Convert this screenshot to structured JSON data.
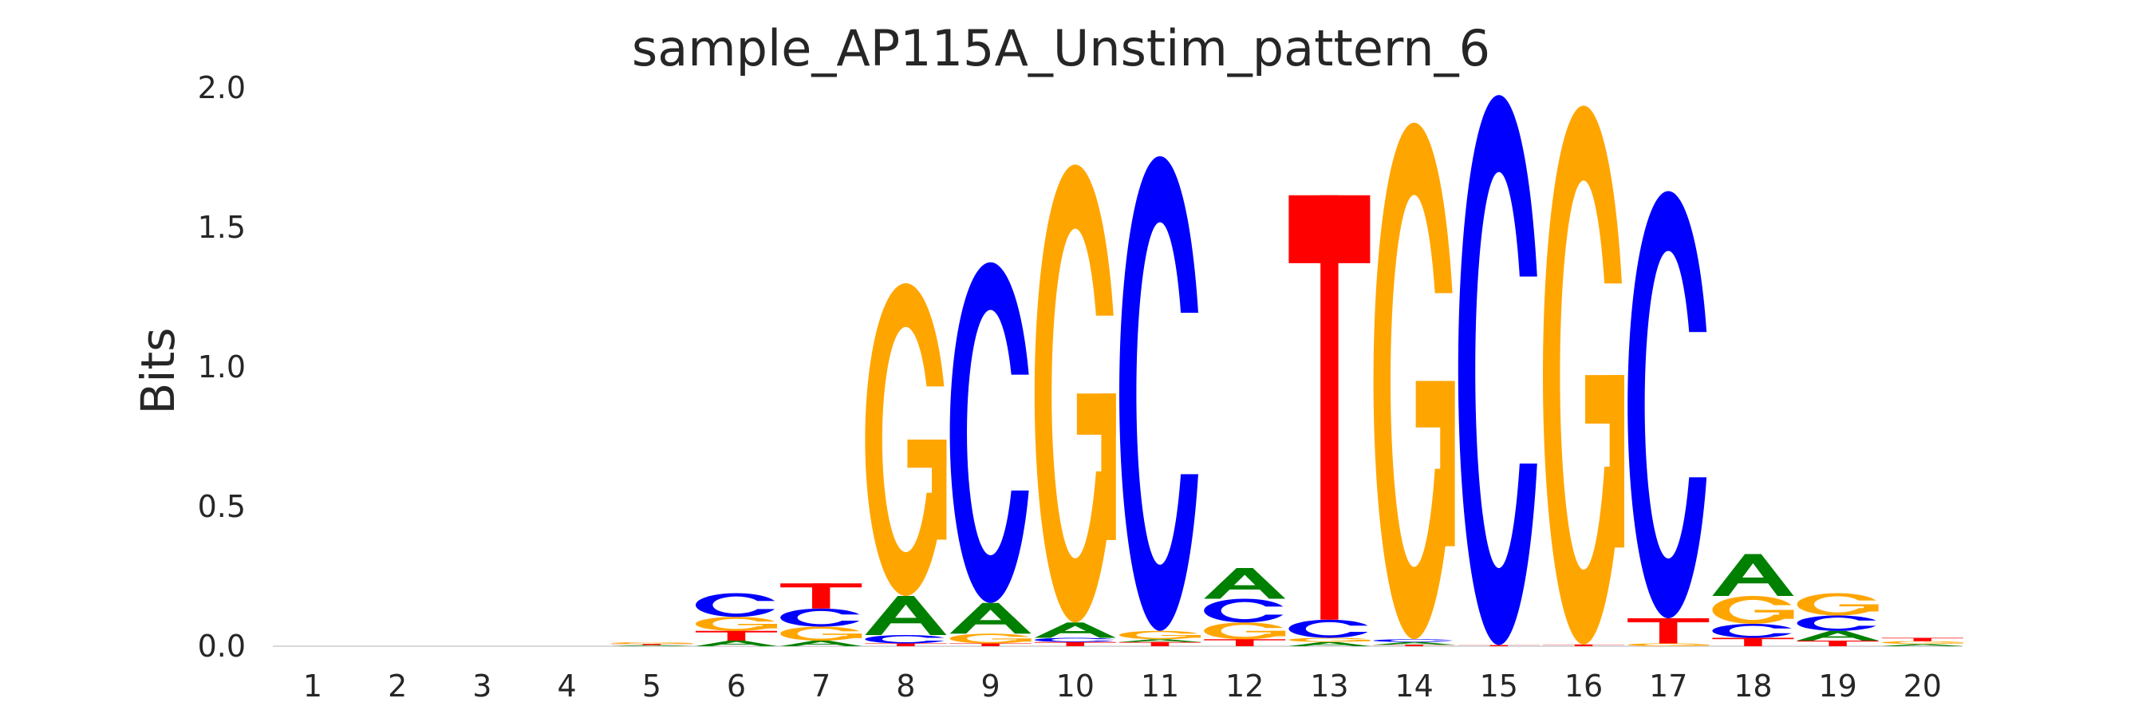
{
  "chart_data": {
    "type": "sequence-logo",
    "title": "sample_AP115A_Unstim_pattern_6",
    "ylabel": "Bits",
    "xlabel": "",
    "ylim": [
      0,
      2.0
    ],
    "yticks": [
      "0.0",
      "0.5",
      "1.0",
      "1.5",
      "2.0"
    ],
    "ytick_values": [
      0,
      0.5,
      1.0,
      1.5,
      2.0
    ],
    "positions": [
      "1",
      "2",
      "3",
      "4",
      "5",
      "6",
      "7",
      "8",
      "9",
      "10",
      "11",
      "12",
      "13",
      "14",
      "15",
      "16",
      "17",
      "18",
      "19",
      "20"
    ],
    "colors": {
      "A": "#008000",
      "C": "#0000ff",
      "G": "#ffa500",
      "T": "#ff0000"
    },
    "grid": false,
    "stacks": [
      [],
      [],
      [],
      [],
      [
        {
          "base": "A",
          "height": 0.004
        },
        {
          "base": "T",
          "height": 0.004
        },
        {
          "base": "G",
          "height": 0.006
        }
      ],
      [
        {
          "base": "A",
          "height": 0.02
        },
        {
          "base": "T",
          "height": 0.035
        },
        {
          "base": "G",
          "height": 0.05
        },
        {
          "base": "C",
          "height": 0.085
        }
      ],
      [
        {
          "base": "A",
          "height": 0.02
        },
        {
          "base": "G",
          "height": 0.05
        },
        {
          "base": "C",
          "height": 0.065
        },
        {
          "base": "T",
          "height": 0.09
        }
      ],
      [
        {
          "base": "T",
          "height": 0.01
        },
        {
          "base": "C",
          "height": 0.03
        },
        {
          "base": "A",
          "height": 0.14
        },
        {
          "base": "G",
          "height": 1.12
        }
      ],
      [
        {
          "base": "T",
          "height": 0.01
        },
        {
          "base": "G",
          "height": 0.035
        },
        {
          "base": "A",
          "height": 0.11
        },
        {
          "base": "C",
          "height": 1.22
        }
      ],
      [
        {
          "base": "T",
          "height": 0.015
        },
        {
          "base": "C",
          "height": 0.015
        },
        {
          "base": "A",
          "height": 0.055
        },
        {
          "base": "G",
          "height": 1.64
        }
      ],
      [
        {
          "base": "T",
          "height": 0.015
        },
        {
          "base": "A",
          "height": 0.01
        },
        {
          "base": "G",
          "height": 0.03
        },
        {
          "base": "C",
          "height": 1.7
        }
      ],
      [
        {
          "base": "T",
          "height": 0.025
        },
        {
          "base": "G",
          "height": 0.06
        },
        {
          "base": "C",
          "height": 0.085
        },
        {
          "base": "A",
          "height": 0.11
        }
      ],
      [
        {
          "base": "A",
          "height": 0.015
        },
        {
          "base": "G",
          "height": 0.015
        },
        {
          "base": "C",
          "height": 0.065
        },
        {
          "base": "T",
          "height": 1.52
        }
      ],
      [
        {
          "base": "T",
          "height": 0.005
        },
        {
          "base": "A",
          "height": 0.01
        },
        {
          "base": "C",
          "height": 0.01
        },
        {
          "base": "G",
          "height": 1.85
        }
      ],
      [
        {
          "base": "T",
          "height": 0.004
        },
        {
          "base": "C",
          "height": 1.97
        }
      ],
      [
        {
          "base": "T",
          "height": 0.006
        },
        {
          "base": "G",
          "height": 1.93
        }
      ],
      [
        {
          "base": "G",
          "height": 0.01
        },
        {
          "base": "T",
          "height": 0.09
        },
        {
          "base": "C",
          "height": 1.53
        }
      ],
      [
        {
          "base": "T",
          "height": 0.03
        },
        {
          "base": "C",
          "height": 0.05
        },
        {
          "base": "G",
          "height": 0.1
        },
        {
          "base": "A",
          "height": 0.15
        }
      ],
      [
        {
          "base": "T",
          "height": 0.02
        },
        {
          "base": "A",
          "height": 0.035
        },
        {
          "base": "C",
          "height": 0.055
        },
        {
          "base": "G",
          "height": 0.08
        }
      ],
      [
        {
          "base": "A",
          "height": 0.008
        },
        {
          "base": "G",
          "height": 0.01
        },
        {
          "base": "T",
          "height": 0.012
        }
      ]
    ]
  }
}
